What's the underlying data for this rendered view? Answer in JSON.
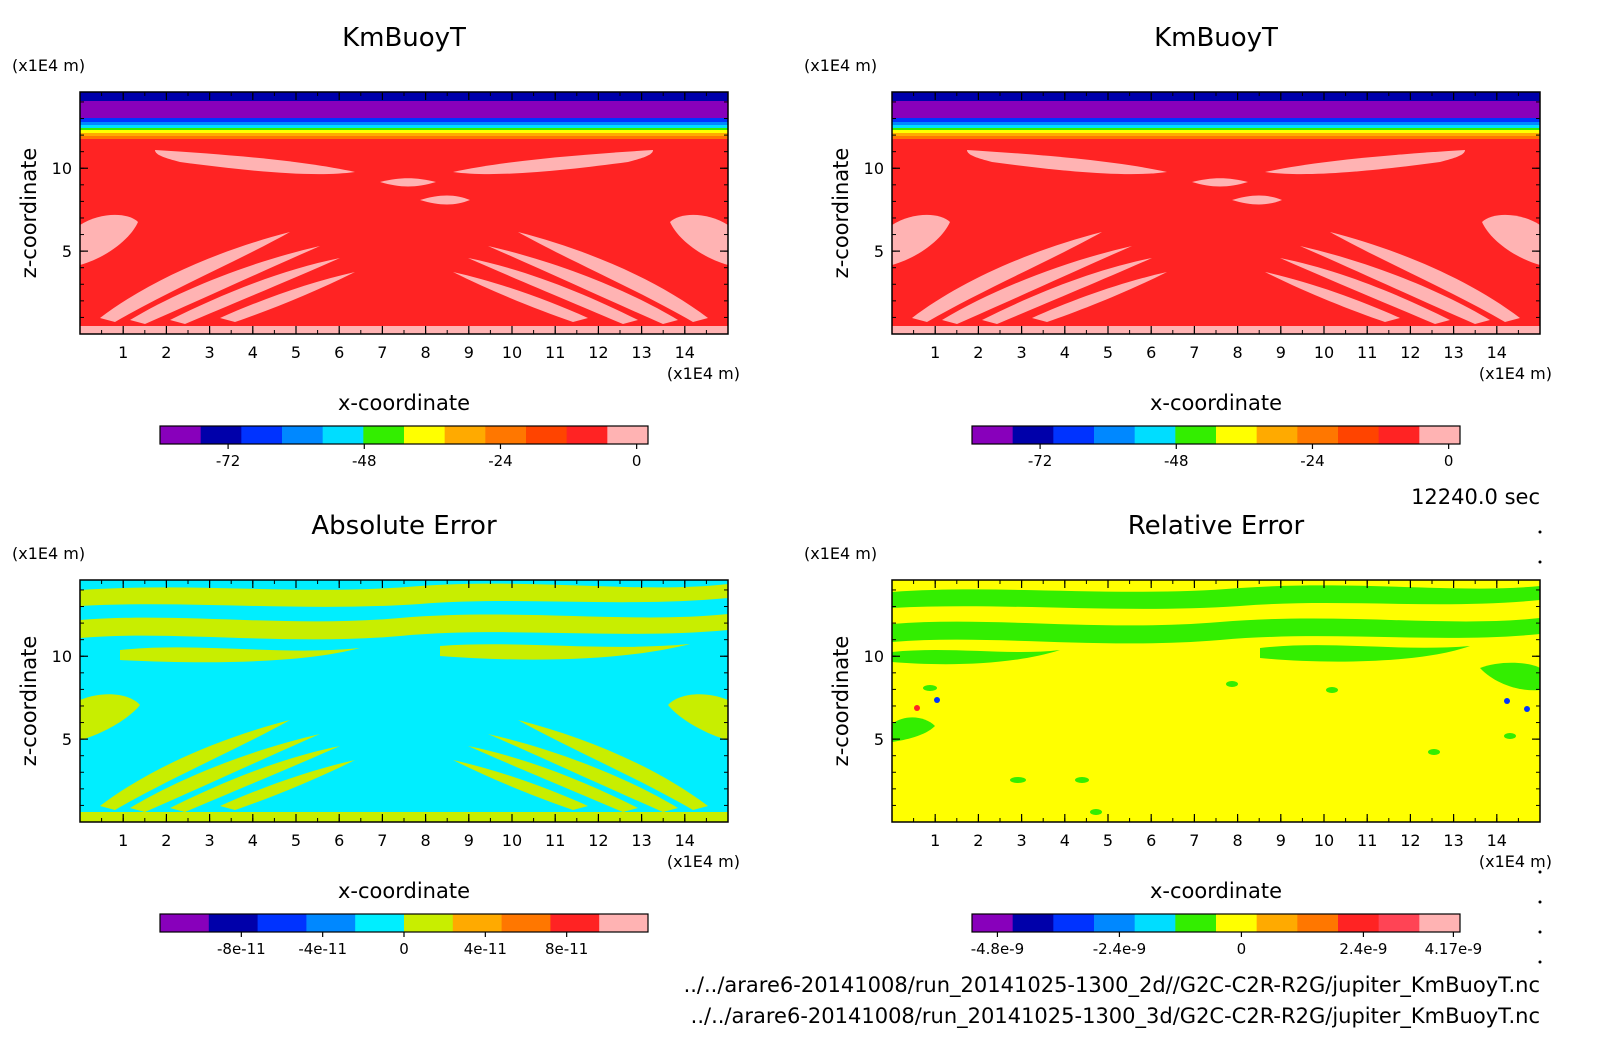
{
  "colors": {
    "redfill": "#ff2323",
    "pink": "#ffb3b3",
    "cyan": "#00eeff",
    "lime": "#c8ee00",
    "yellow": "#ffff00",
    "green": "#33ee00"
  },
  "footer": {
    "time_label": "12240.0 sec",
    "path_2d": "../../arare6-20141008/run_20141025-1300_2d//G2C-C2R-R2G/jupiter_KmBuoyT.nc",
    "path_3d": "../../arare6-20141008/run_20141025-1300_3d/G2C-C2R-R2G/jupiter_KmBuoyT.nc"
  },
  "chart_data": [
    {
      "type": "heatmap",
      "title": "KmBuoyT",
      "xlabel": "x-coordinate",
      "ylabel": "z-coordinate",
      "x_unit": "(x1E4 m)",
      "y_unit": "(x1E4 m)",
      "xlim": [
        0,
        15
      ],
      "ylim": [
        0,
        14.6
      ],
      "x_ticks": [
        "1",
        "2",
        "3",
        "4",
        "5",
        "6",
        "7",
        "8",
        "9",
        "10",
        "11",
        "12",
        "13",
        "14"
      ],
      "y_ticks": [
        "5",
        "10"
      ],
      "colorbar": {
        "min": -84,
        "max": 2,
        "levels": [
          -84,
          -72,
          -60,
          -48,
          -36,
          -24,
          -12,
          0,
          2
        ],
        "colors": [
          "#8800bb",
          "#0000aa",
          "#0033ff",
          "#0088ff",
          "#00ddff",
          "#33ee00",
          "#ffff00",
          "#ffaa00",
          "#ff7700",
          "#ff4400",
          "#ff2323",
          "#ffb3b3"
        ],
        "tick_values": [
          -72,
          -48,
          -24,
          0
        ],
        "tick_labels": [
          "-72",
          "-48",
          "-24",
          "0"
        ]
      }
    },
    {
      "type": "heatmap",
      "title": "KmBuoyT",
      "xlabel": "x-coordinate",
      "ylabel": "z-coordinate",
      "x_unit": "(x1E4 m)",
      "y_unit": "(x1E4 m)",
      "xlim": [
        0,
        15
      ],
      "ylim": [
        0,
        14.6
      ],
      "x_ticks": [
        "1",
        "2",
        "3",
        "4",
        "5",
        "6",
        "7",
        "8",
        "9",
        "10",
        "11",
        "12",
        "13",
        "14"
      ],
      "y_ticks": [
        "5",
        "10"
      ],
      "colorbar": {
        "min": -84,
        "max": 2,
        "colors": [
          "#8800bb",
          "#0000aa",
          "#0033ff",
          "#0088ff",
          "#00ddff",
          "#33ee00",
          "#ffff00",
          "#ffaa00",
          "#ff7700",
          "#ff4400",
          "#ff2323",
          "#ffb3b3"
        ],
        "tick_values": [
          -72,
          -48,
          -24,
          0
        ],
        "tick_labels": [
          "-72",
          "-48",
          "-24",
          "0"
        ]
      }
    },
    {
      "type": "heatmap",
      "title": "Absolute Error",
      "xlabel": "x-coordinate",
      "ylabel": "z-coordinate",
      "x_unit": "(x1E4 m)",
      "y_unit": "(x1E4 m)",
      "xlim": [
        0,
        15
      ],
      "ylim": [
        0,
        14.6
      ],
      "x_ticks": [
        "1",
        "2",
        "3",
        "4",
        "5",
        "6",
        "7",
        "8",
        "9",
        "10",
        "11",
        "12",
        "13",
        "14"
      ],
      "y_ticks": [
        "5",
        "10"
      ],
      "colorbar": {
        "min": -1.2e-10,
        "max": 1.2e-10,
        "colors": [
          "#8800bb",
          "#0000aa",
          "#0033ff",
          "#0088ff",
          "#00eeff",
          "#c8ee00",
          "#ffaa00",
          "#ff7700",
          "#ff2323",
          "#ffb3b3"
        ],
        "tick_values": [
          -8e-11,
          -4e-11,
          0,
          4e-11,
          8e-11
        ],
        "tick_labels": [
          "-8e-11",
          "-4e-11",
          "0",
          "4e-11",
          "8e-11"
        ]
      }
    },
    {
      "type": "heatmap",
      "title": "Relative Error",
      "xlabel": "x-coordinate",
      "ylabel": "z-coordinate",
      "x_unit": "(x1E4 m)",
      "y_unit": "(x1E4 m)",
      "xlim": [
        0,
        15
      ],
      "ylim": [
        0,
        14.6
      ],
      "x_ticks": [
        "1",
        "2",
        "3",
        "4",
        "5",
        "6",
        "7",
        "8",
        "9",
        "10",
        "11",
        "12",
        "13",
        "14"
      ],
      "y_ticks": [
        "5",
        "10"
      ],
      "colorbar": {
        "min": -5.3e-09,
        "max": 4.3e-09,
        "colors": [
          "#8800bb",
          "#0000aa",
          "#0033ff",
          "#0088ff",
          "#00ddff",
          "#33ee00",
          "#ffff00",
          "#ffaa00",
          "#ff7700",
          "#ff2323",
          "#ff4455",
          "#ffb3b3"
        ],
        "tick_values": [
          -4.8e-09,
          -2.4e-09,
          0,
          2.4e-09,
          4.17e-09
        ],
        "tick_labels": [
          "-4.8e-9",
          "-2.4e-9",
          "0",
          "2.4e-9",
          "4.17e-9"
        ]
      }
    }
  ]
}
